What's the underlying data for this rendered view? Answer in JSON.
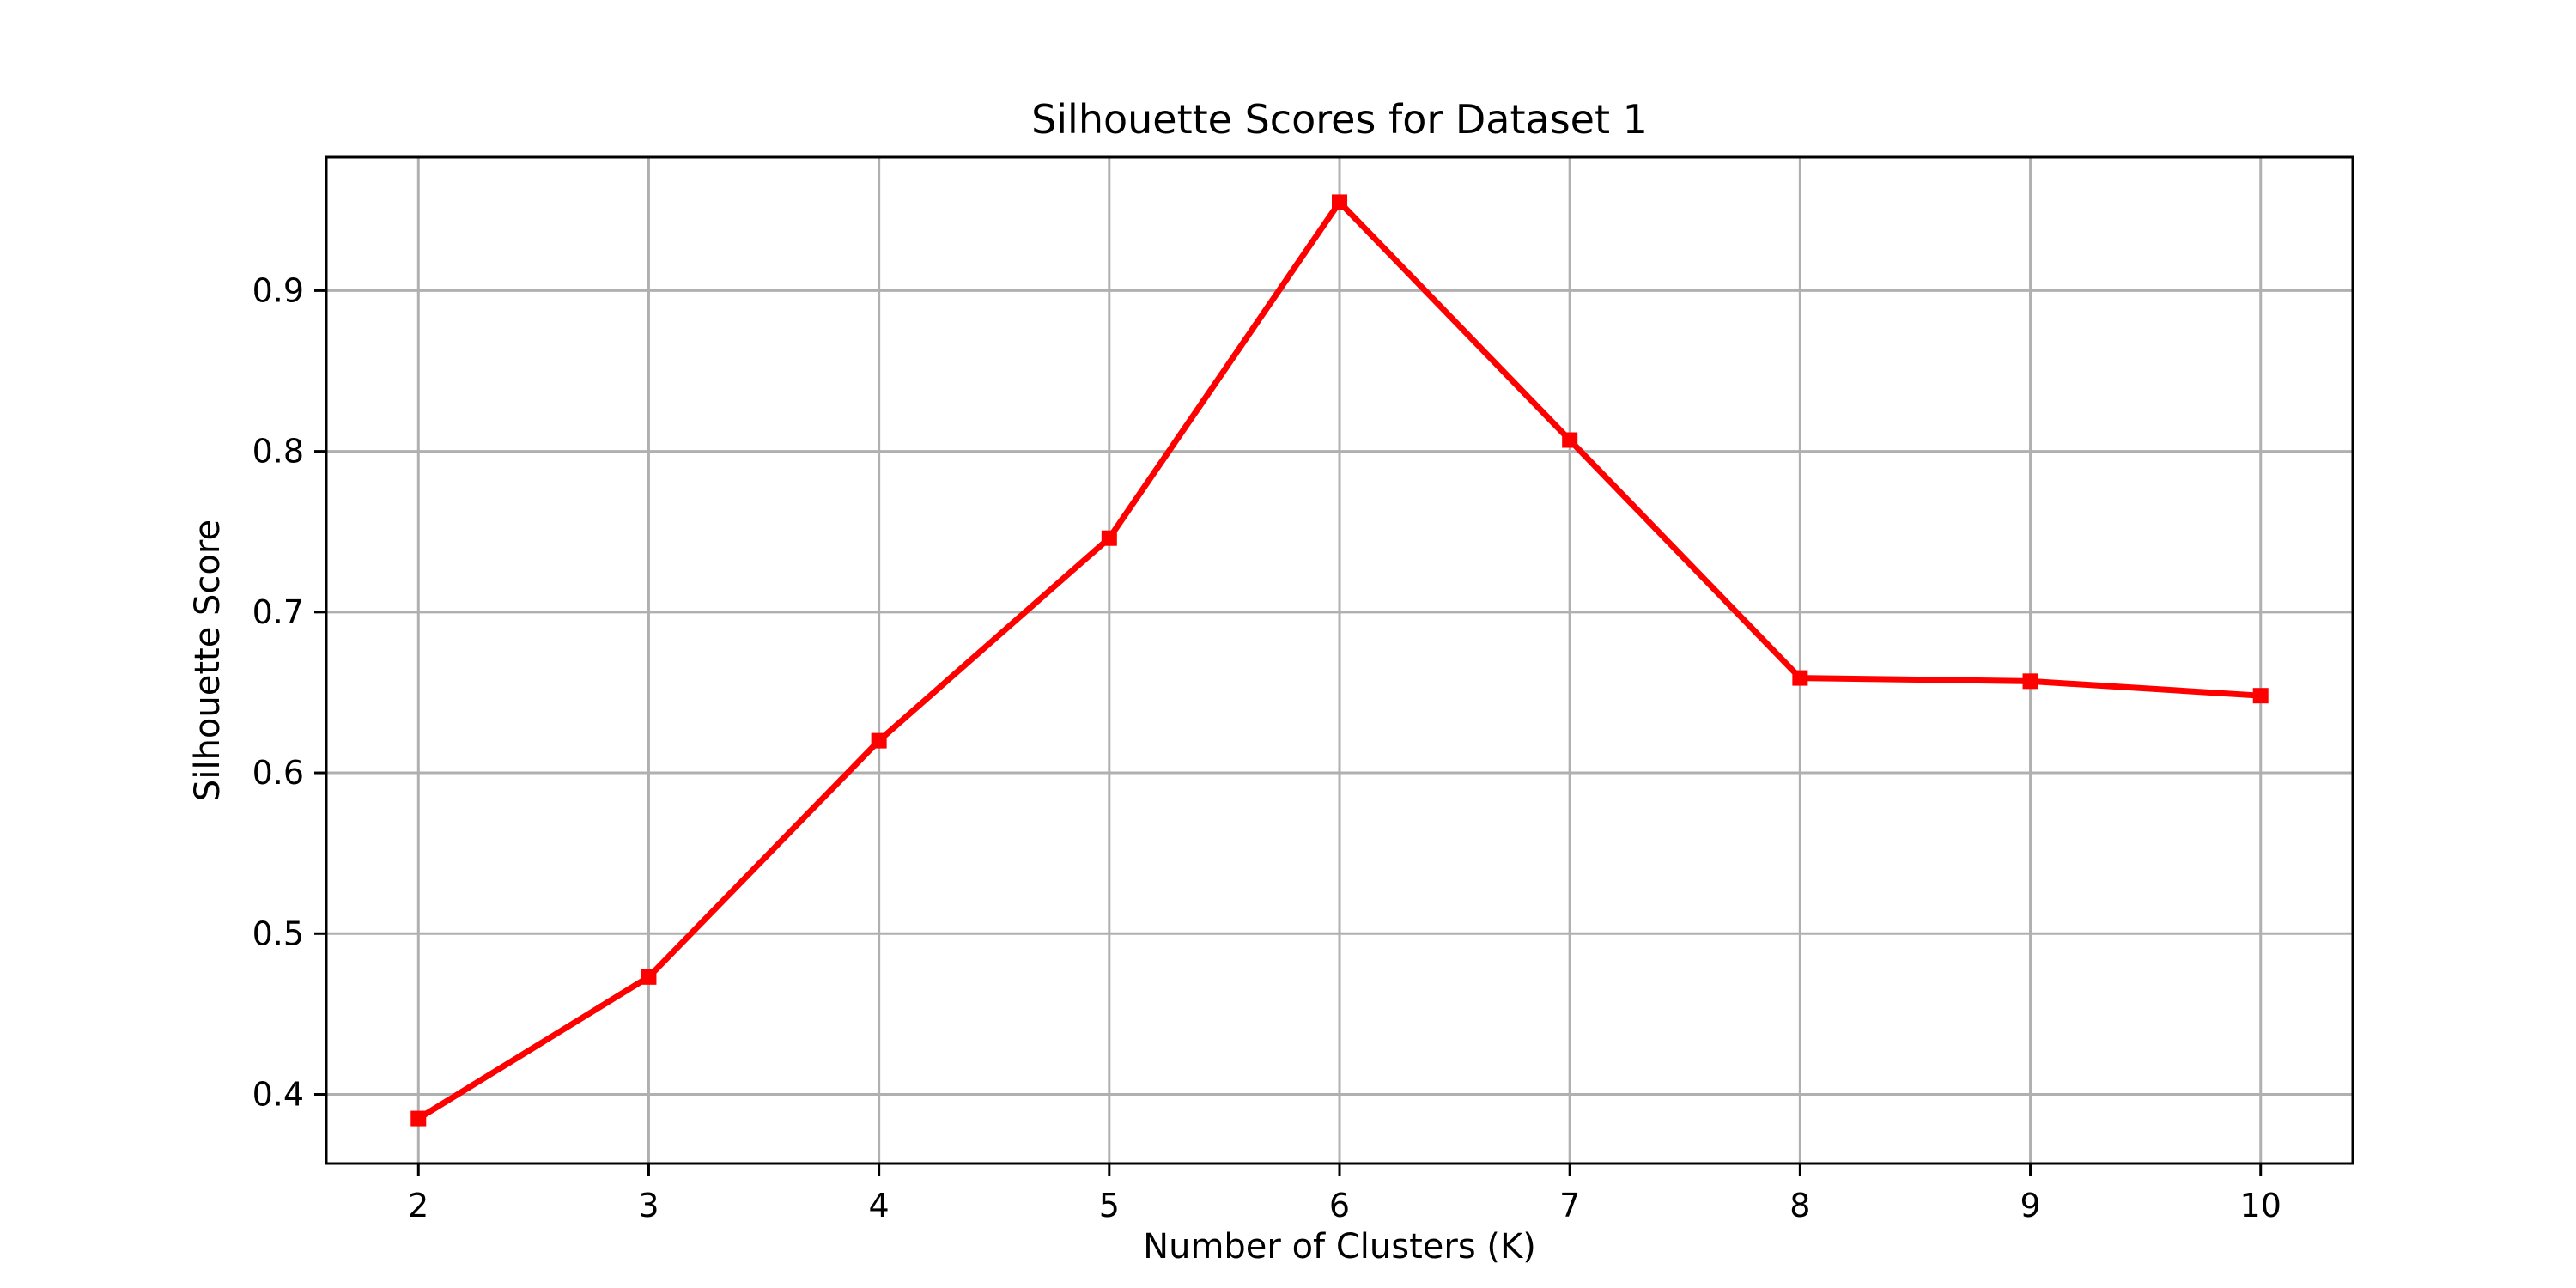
{
  "chart_data": {
    "type": "line",
    "title": "Silhouette Scores for Dataset 1",
    "xlabel": "Number of Clusters (K)",
    "ylabel": "Silhouette Score",
    "x": [
      2,
      3,
      4,
      5,
      6,
      7,
      8,
      9,
      10
    ],
    "series": [
      {
        "values": [
          0.385,
          0.473,
          0.62,
          0.746,
          0.955,
          0.807,
          0.659,
          0.657,
          0.648
        ],
        "color": "#ff0000",
        "marker": "square"
      }
    ],
    "xlim": [
      1.6,
      10.4
    ],
    "ylim": [
      0.357,
      0.983
    ],
    "xticks": [
      2,
      3,
      4,
      5,
      6,
      7,
      8,
      9,
      10
    ],
    "yticks": [
      0.4,
      0.5,
      0.6,
      0.7,
      0.8,
      0.9
    ],
    "ytick_labels": [
      "0.4",
      "0.5",
      "0.6",
      "0.7",
      "0.8",
      "0.9"
    ],
    "grid": true,
    "legend": "none"
  }
}
